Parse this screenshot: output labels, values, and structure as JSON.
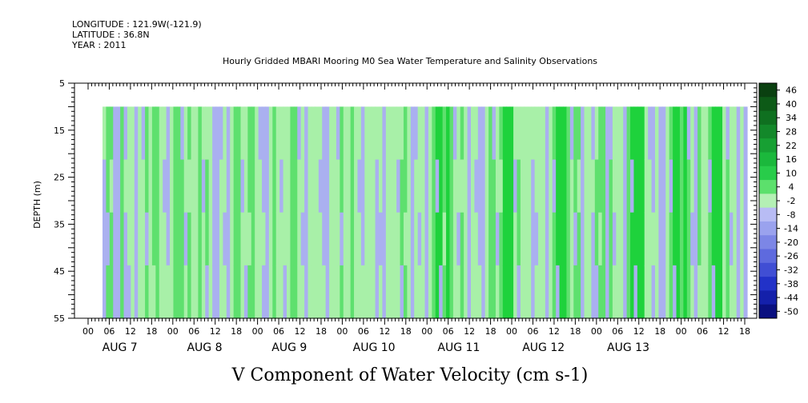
{
  "header": {
    "longitude": "LONGITUDE : 121.9W(-121.9)",
    "latitude": "LATITUDE : 36.8N",
    "year": "YEAR : 2011",
    "title": "Hourly Gridded MBARI Mooring M0 Sea Water Temperature and Salinity Observations"
  },
  "chart_data": {
    "type": "heatmap",
    "title": "Hourly Gridded MBARI Mooring M0 Sea Water Temperature and Salinity Observations",
    "xlabel": "V Component of Water Velocity (cm s-1)",
    "ylabel": "DEPTH (m)",
    "ylim": [
      55,
      5
    ],
    "y_tick_labels": [
      "5",
      "15",
      "25",
      "35",
      "45",
      "55"
    ],
    "x_hour_ticks": [
      "00",
      "06",
      "12",
      "18",
      "00",
      "06",
      "12",
      "18",
      "00",
      "06",
      "12",
      "18",
      "00",
      "06",
      "12",
      "18",
      "00",
      "06",
      "12",
      "18",
      "00",
      "06",
      "12",
      "18",
      "00",
      "06",
      "12",
      "18",
      "00",
      "06",
      "12",
      "18"
    ],
    "x_day_labels": [
      "AUG  7",
      "AUG  8",
      "AUG  9",
      "AUG 10",
      "AUG 11",
      "AUG 12",
      "AUG 13"
    ],
    "data_depth_range": [
      10,
      55
    ],
    "colorbar_labels": [
      "46",
      "40",
      "34",
      "28",
      "22",
      "16",
      "10",
      "4",
      "-2",
      "-8",
      "-14",
      "-20",
      "-26",
      "-32",
      "-38",
      "-44",
      "-50"
    ],
    "colors": {
      "blue": "#aab0f0",
      "light_green": "#a8f0a8",
      "mid_green": "#5ee06e",
      "bright_green": "#1ed23c"
    },
    "column_pattern": [
      "b",
      "g",
      "g",
      "b",
      "b",
      "g",
      "b",
      "l",
      "l",
      "b",
      "l",
      "l",
      "g",
      "l",
      "g",
      "g",
      "l",
      "l",
      "b",
      "l",
      "g",
      "g",
      "g",
      "l",
      "g",
      "l",
      "l",
      "g",
      "l",
      "g",
      "l",
      "b",
      "b",
      "l",
      "l",
      "b",
      "l",
      "g",
      "g",
      "l",
      "l",
      "g",
      "g",
      "l",
      "l",
      "b",
      "b",
      "l",
      "g",
      "l",
      "l",
      "l",
      "l",
      "g",
      "g",
      "l",
      "l",
      "b",
      "l",
      "l",
      "l",
      "l",
      "b",
      "b",
      "l",
      "l",
      "l",
      "g",
      "l",
      "l",
      "g",
      "l",
      "l",
      "b",
      "l",
      "l",
      "l",
      "b",
      "l",
      "b",
      "l",
      "l",
      "l",
      "l",
      "g",
      "g",
      "l",
      "b",
      "l",
      "l",
      "l",
      "b",
      "l",
      "g",
      "G",
      "G",
      "g",
      "G",
      "g",
      "l",
      "l",
      "g",
      "l",
      "b",
      "l",
      "l",
      "b",
      "b",
      "l",
      "g",
      "g",
      "l",
      "g",
      "G",
      "G",
      "G",
      "l",
      "g",
      "l",
      "l",
      "l",
      "b",
      "l",
      "l",
      "l",
      "b",
      "l",
      "g",
      "G",
      "G",
      "G",
      "g",
      "l",
      "g",
      "g",
      "b",
      "l",
      "l",
      "b",
      "g",
      "g",
      "g",
      "b",
      "g",
      "l",
      "l",
      "l",
      "b",
      "g",
      "G",
      "G",
      "G",
      "G",
      "l",
      "l",
      "b",
      "l",
      "b",
      "b",
      "l",
      "g",
      "G",
      "G",
      "g",
      "G",
      "g",
      "l",
      "b",
      "g",
      "l",
      "l",
      "g",
      "G",
      "G",
      "G",
      "l",
      "g",
      "l",
      "l",
      "b",
      "l",
      "b"
    ]
  }
}
